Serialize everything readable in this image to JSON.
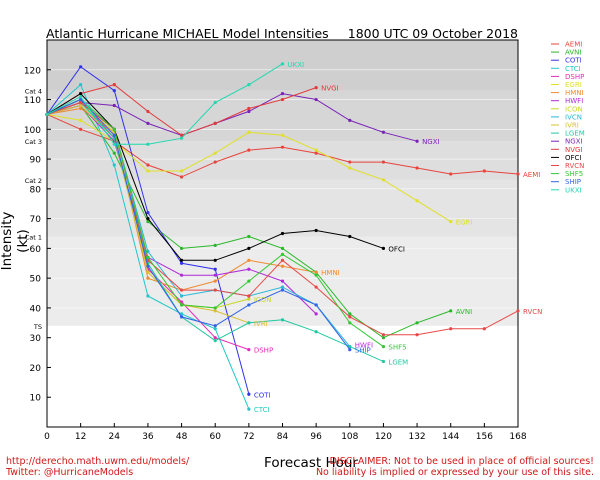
{
  "title_left": "Atlantic Hurricane MICHAEL Model Intensities",
  "title_right": "1800 UTC 09 October 2018",
  "footer_left": [
    "http://derecho.math.uwm.edu/models/",
    "Twitter: @HurricaneModels"
  ],
  "footer_right": [
    "DISCLAIMER: Not to be used in place of official sources!",
    "No liability is implied or expressed by your use of this site."
  ],
  "chart_data": {
    "type": "line",
    "xlabel": "Forecast Hour",
    "ylabel": "Intensity (kt)",
    "xlim": [
      0,
      168
    ],
    "ylim": [
      0,
      130
    ],
    "xticks": [
      0,
      12,
      24,
      36,
      48,
      60,
      72,
      84,
      96,
      108,
      120,
      132,
      144,
      156,
      168
    ],
    "yticks": [
      10,
      20,
      30,
      40,
      50,
      60,
      70,
      80,
      90,
      100,
      110,
      120
    ],
    "category_bands": [
      {
        "label": "TS",
        "value": 34,
        "band_top": 64
      },
      {
        "label": "Cat 1",
        "value": 64,
        "band_top": 83
      },
      {
        "label": "Cat 2",
        "value": 83,
        "band_top": 96
      },
      {
        "label": "Cat 3",
        "value": 96,
        "band_top": 113
      },
      {
        "label": "Cat 4",
        "value": 113,
        "band_top": 130
      }
    ],
    "legend_position": "right",
    "series": [
      {
        "name": "AEMI",
        "color": "#e8433c",
        "end_label": "AEMI",
        "points": [
          [
            0,
            105
          ],
          [
            12,
            100
          ],
          [
            24,
            96
          ],
          [
            36,
            88
          ],
          [
            48,
            84
          ],
          [
            60,
            89
          ],
          [
            72,
            93
          ],
          [
            84,
            94
          ],
          [
            96,
            92
          ],
          [
            108,
            89
          ],
          [
            120,
            89
          ],
          [
            132,
            87
          ],
          [
            144,
            85
          ],
          [
            156,
            86
          ],
          [
            168,
            85
          ]
        ]
      },
      {
        "name": "AVNI",
        "color": "#2ab82a",
        "end_label": "AVNI",
        "points": [
          [
            0,
            105
          ],
          [
            12,
            108
          ],
          [
            24,
            92
          ],
          [
            36,
            69
          ],
          [
            48,
            60
          ],
          [
            60,
            61
          ],
          [
            72,
            64
          ],
          [
            84,
            60
          ],
          [
            96,
            52
          ],
          [
            108,
            38
          ],
          [
            120,
            30
          ],
          [
            132,
            35
          ],
          [
            144,
            39
          ]
        ]
      },
      {
        "name": "COTI",
        "color": "#3232ee",
        "end_label": "COTI",
        "points": [
          [
            0,
            105
          ],
          [
            12,
            121
          ],
          [
            24,
            113
          ],
          [
            36,
            72
          ],
          [
            48,
            55
          ],
          [
            60,
            53
          ],
          [
            72,
            11
          ]
        ]
      },
      {
        "name": "CTCI",
        "color": "#20c8c8",
        "end_label": "CTCI",
        "points": [
          [
            0,
            105
          ],
          [
            12,
            115
          ],
          [
            24,
            88
          ],
          [
            36,
            44
          ],
          [
            48,
            38
          ],
          [
            60,
            33
          ],
          [
            72,
            6
          ]
        ]
      },
      {
        "name": "DSHP",
        "color": "#e82ab8",
        "end_label": "DSHP",
        "points": [
          [
            0,
            105
          ],
          [
            12,
            110
          ],
          [
            24,
            97
          ],
          [
            36,
            53
          ],
          [
            48,
            42
          ],
          [
            60,
            30
          ],
          [
            72,
            26
          ]
        ]
      },
      {
        "name": "EGRI",
        "color": "#e0e028",
        "end_label": "EGRI",
        "points": [
          [
            0,
            105
          ],
          [
            12,
            103
          ],
          [
            24,
            96
          ],
          [
            36,
            86
          ],
          [
            48,
            86
          ],
          [
            60,
            92
          ],
          [
            72,
            99
          ],
          [
            84,
            98
          ],
          [
            96,
            93
          ],
          [
            108,
            87
          ],
          [
            120,
            83
          ],
          [
            132,
            76
          ],
          [
            144,
            69
          ]
        ]
      },
      {
        "name": "HMNI",
        "color": "#f08a30",
        "end_label": "HMNI",
        "points": [
          [
            0,
            105
          ],
          [
            12,
            107
          ],
          [
            24,
            99
          ],
          [
            36,
            50
          ],
          [
            48,
            46
          ],
          [
            60,
            49
          ],
          [
            72,
            56
          ],
          [
            84,
            54
          ],
          [
            96,
            52
          ]
        ]
      },
      {
        "name": "HWFI",
        "color": "#b22ad8",
        "end_label": "",
        "points": [
          [
            0,
            105
          ],
          [
            12,
            108
          ],
          [
            24,
            96
          ],
          [
            36,
            57
          ],
          [
            48,
            51
          ],
          [
            60,
            51
          ],
          [
            72,
            53
          ],
          [
            84,
            49
          ],
          [
            96,
            38
          ]
        ]
      },
      {
        "name": "ICON",
        "color": "#c8d822",
        "end_label": "ICON",
        "points": [
          [
            0,
            105
          ],
          [
            12,
            109
          ],
          [
            24,
            99
          ],
          [
            36,
            52
          ],
          [
            48,
            41
          ],
          [
            60,
            40
          ],
          [
            72,
            43
          ]
        ]
      },
      {
        "name": "IVCN",
        "color": "#28b8d8",
        "end_label": "",
        "points": [
          [
            0,
            105
          ],
          [
            12,
            110
          ],
          [
            24,
            100
          ],
          [
            36,
            59
          ],
          [
            48,
            44
          ],
          [
            60,
            46
          ],
          [
            72,
            44
          ],
          [
            84,
            47
          ],
          [
            96,
            41
          ],
          [
            108,
            27
          ]
        ]
      },
      {
        "name": "IVRI",
        "color": "#d8c030",
        "end_label": "IVRI",
        "points": [
          [
            0,
            105
          ],
          [
            12,
            108
          ],
          [
            24,
            97
          ],
          [
            36,
            52
          ],
          [
            48,
            41
          ],
          [
            60,
            39
          ],
          [
            72,
            35
          ]
        ]
      },
      {
        "name": "LGEM",
        "color": "#20c8a0",
        "end_label": "LGEM",
        "points": [
          [
            0,
            105
          ],
          [
            12,
            109
          ],
          [
            24,
            97
          ],
          [
            36,
            55
          ],
          [
            48,
            37
          ],
          [
            60,
            29
          ],
          [
            72,
            35
          ],
          [
            84,
            36
          ],
          [
            96,
            32
          ],
          [
            108,
            27
          ],
          [
            120,
            22
          ]
        ]
      },
      {
        "name": "NGXI",
        "color": "#7a22b8",
        "end_label": "NGXI",
        "points": [
          [
            0,
            105
          ],
          [
            12,
            109
          ],
          [
            24,
            108
          ],
          [
            36,
            102
          ],
          [
            48,
            98
          ],
          [
            60,
            102
          ],
          [
            72,
            106
          ],
          [
            84,
            112
          ],
          [
            96,
            110
          ],
          [
            108,
            103
          ],
          [
            120,
            99
          ],
          [
            132,
            96
          ]
        ]
      },
      {
        "name": "NVGI",
        "color": "#e23a3a",
        "end_label": "NVGI",
        "points": [
          [
            0,
            105
          ],
          [
            12,
            112
          ],
          [
            24,
            115
          ],
          [
            36,
            106
          ],
          [
            48,
            98
          ],
          [
            60,
            102
          ],
          [
            72,
            107
          ],
          [
            84,
            110
          ],
          [
            96,
            114
          ]
        ]
      },
      {
        "name": "OFCI",
        "color": "#000000",
        "end_label": "OFCI",
        "points": [
          [
            0,
            105
          ],
          [
            12,
            112
          ],
          [
            24,
            100
          ],
          [
            36,
            70
          ],
          [
            48,
            56
          ],
          [
            60,
            56
          ],
          [
            72,
            60
          ],
          [
            84,
            65
          ],
          [
            96,
            66
          ],
          [
            108,
            64
          ],
          [
            120,
            60
          ]
        ]
      },
      {
        "name": "RVCN",
        "color": "#e84848",
        "end_label": "RVCN",
        "points": [
          [
            0,
            105
          ],
          [
            12,
            109
          ],
          [
            24,
            100
          ],
          [
            36,
            56
          ],
          [
            48,
            46
          ],
          [
            60,
            46
          ],
          [
            72,
            44
          ],
          [
            84,
            56
          ],
          [
            96,
            47
          ],
          [
            108,
            37
          ],
          [
            120,
            31
          ],
          [
            132,
            31
          ],
          [
            144,
            33
          ],
          [
            156,
            33
          ],
          [
            168,
            39
          ]
        ]
      },
      {
        "name": "SHF5",
        "color": "#32c832",
        "end_label": "SHF5",
        "points": [
          [
            0,
            105
          ],
          [
            12,
            110
          ],
          [
            24,
            100
          ],
          [
            36,
            57
          ],
          [
            48,
            41
          ],
          [
            60,
            40
          ],
          [
            72,
            49
          ],
          [
            84,
            58
          ],
          [
            96,
            51
          ],
          [
            108,
            35
          ],
          [
            120,
            27
          ]
        ]
      },
      {
        "name": "SHIP",
        "color": "#3264e8",
        "end_label": "SHIP",
        "points": [
          [
            0,
            105
          ],
          [
            12,
            110
          ],
          [
            24,
            98
          ],
          [
            36,
            54
          ],
          [
            48,
            37
          ],
          [
            60,
            34
          ],
          [
            72,
            41
          ],
          [
            84,
            46
          ],
          [
            96,
            41
          ],
          [
            108,
            26
          ]
        ]
      },
      {
        "name": "UKXI",
        "color": "#20d8b0",
        "end_label": "UKXI",
        "points": [
          [
            0,
            105
          ],
          [
            12,
            111
          ],
          [
            24,
            95
          ],
          [
            36,
            95
          ],
          [
            48,
            97
          ],
          [
            60,
            109
          ],
          [
            72,
            115
          ],
          [
            84,
            122
          ]
        ]
      }
    ],
    "extra_labels": [
      {
        "text": "HWFI",
        "series": "HWFI",
        "x": 108,
        "y": 27
      }
    ]
  }
}
